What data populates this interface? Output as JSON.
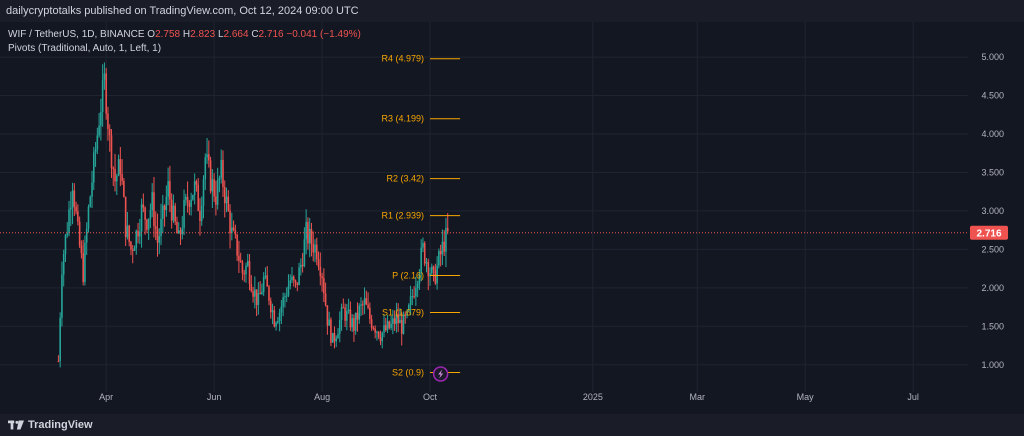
{
  "header": {
    "publisher_line": "dailycryptotalks published on TradingView.com, Oct 12, 2024 09:00 UTC"
  },
  "legend": {
    "symbol": "WIF / TetherUS, 1D, BINANCE",
    "o_label": "O",
    "o_value": "2.758",
    "h_label": "H",
    "h_value": "2.823",
    "l_label": "L",
    "l_value": "2.664",
    "c_label": "C",
    "c_value": "2.716",
    "change": "−0.041 (−1.49%)",
    "indicator": "Pivots (Traditional, Auto, 1, Left, 1)"
  },
  "footer": {
    "logo_text": "TradingView"
  },
  "colors": {
    "up": "#26a69a",
    "down": "#ef5350",
    "pivot": "#f7a600",
    "price_line": "#ef5350",
    "background": "#131722"
  },
  "chart_data": {
    "type": "candlestick",
    "title": "",
    "xlabel": "",
    "ylabel": "",
    "x_ticks": [
      "Apr",
      "Jun",
      "Aug",
      "Oct",
      "2025",
      "Mar",
      "May",
      "Jul"
    ],
    "y_ticks": [
      "1.000",
      "1.500",
      "2.000",
      "2.500",
      "3.000",
      "3.500",
      "4.000",
      "4.500",
      "5.000"
    ],
    "ylim": [
      0.75,
      5.3
    ],
    "grid": true,
    "current_price": "2.716",
    "pivots": [
      {
        "label": "R4 (4.979)",
        "value": 4.979
      },
      {
        "label": "R3 (4.199)",
        "value": 4.199
      },
      {
        "label": "R2 (3.42)",
        "value": 3.42
      },
      {
        "label": "R1 (2.939)",
        "value": 2.939
      },
      {
        "label": "P (2.16)",
        "value": 2.16
      },
      {
        "label": "S1 (1.679)",
        "value": 1.679
      },
      {
        "label": "S2 (0.9)",
        "value": 0.9
      }
    ],
    "price_path": [
      [
        "2024-03-05",
        1.05
      ],
      [
        "2024-03-07",
        2.3
      ],
      [
        "2024-03-10",
        2.8
      ],
      [
        "2024-03-13",
        3.4
      ],
      [
        "2024-03-16",
        2.7
      ],
      [
        "2024-03-19",
        2.2
      ],
      [
        "2024-03-22",
        3.0
      ],
      [
        "2024-03-25",
        3.6
      ],
      [
        "2024-03-28",
        4.2
      ],
      [
        "2024-03-31",
        4.7
      ],
      [
        "2024-04-03",
        3.9
      ],
      [
        "2024-04-06",
        3.4
      ],
      [
        "2024-04-09",
        3.6
      ],
      [
        "2024-04-12",
        2.8
      ],
      [
        "2024-04-15",
        2.5
      ],
      [
        "2024-04-18",
        2.7
      ],
      [
        "2024-04-21",
        3.0
      ],
      [
        "2024-04-24",
        2.9
      ],
      [
        "2024-04-27",
        3.1
      ],
      [
        "2024-04-30",
        2.6
      ],
      [
        "2024-05-03",
        2.9
      ],
      [
        "2024-05-06",
        3.3
      ],
      [
        "2024-05-09",
        2.9
      ],
      [
        "2024-05-12",
        2.6
      ],
      [
        "2024-05-15",
        3.0
      ],
      [
        "2024-05-18",
        3.2
      ],
      [
        "2024-05-21",
        3.3
      ],
      [
        "2024-05-24",
        3.0
      ],
      [
        "2024-05-27",
        3.7
      ],
      [
        "2024-05-30",
        3.4
      ],
      [
        "2024-06-02",
        3.2
      ],
      [
        "2024-06-05",
        3.5
      ],
      [
        "2024-06-08",
        3.1
      ],
      [
        "2024-06-11",
        2.7
      ],
      [
        "2024-06-14",
        2.5
      ],
      [
        "2024-06-17",
        2.2
      ],
      [
        "2024-06-20",
        2.3
      ],
      [
        "2024-06-23",
        2.0
      ],
      [
        "2024-06-26",
        1.8
      ],
      [
        "2024-06-29",
        2.1
      ],
      [
        "2024-07-02",
        1.9
      ],
      [
        "2024-07-05",
        1.6
      ],
      [
        "2024-07-08",
        1.7
      ],
      [
        "2024-07-11",
        1.9
      ],
      [
        "2024-07-14",
        2.1
      ],
      [
        "2024-07-17",
        2.0
      ],
      [
        "2024-07-20",
        2.3
      ],
      [
        "2024-07-23",
        2.7
      ],
      [
        "2024-07-26",
        2.6
      ],
      [
        "2024-07-29",
        2.5
      ],
      [
        "2024-08-01",
        2.2
      ],
      [
        "2024-08-04",
        1.6
      ],
      [
        "2024-08-07",
        1.3
      ],
      [
        "2024-08-10",
        1.5
      ],
      [
        "2024-08-13",
        1.7
      ],
      [
        "2024-08-16",
        1.6
      ],
      [
        "2024-08-19",
        1.5
      ],
      [
        "2024-08-22",
        1.7
      ],
      [
        "2024-08-25",
        1.8
      ],
      [
        "2024-08-28",
        1.6
      ],
      [
        "2024-08-31",
        1.5
      ],
      [
        "2024-09-03",
        1.4
      ],
      [
        "2024-09-06",
        1.45
      ],
      [
        "2024-09-09",
        1.5
      ],
      [
        "2024-09-12",
        1.6
      ],
      [
        "2024-09-15",
        1.5
      ],
      [
        "2024-09-18",
        1.6
      ],
      [
        "2024-09-21",
        1.9
      ],
      [
        "2024-09-24",
        2.2
      ],
      [
        "2024-09-27",
        2.5
      ],
      [
        "2024-09-30",
        2.3
      ],
      [
        "2024-10-03",
        2.1
      ],
      [
        "2024-10-06",
        2.35
      ],
      [
        "2024-10-09",
        2.6
      ],
      [
        "2024-10-12",
        2.716
      ]
    ]
  }
}
